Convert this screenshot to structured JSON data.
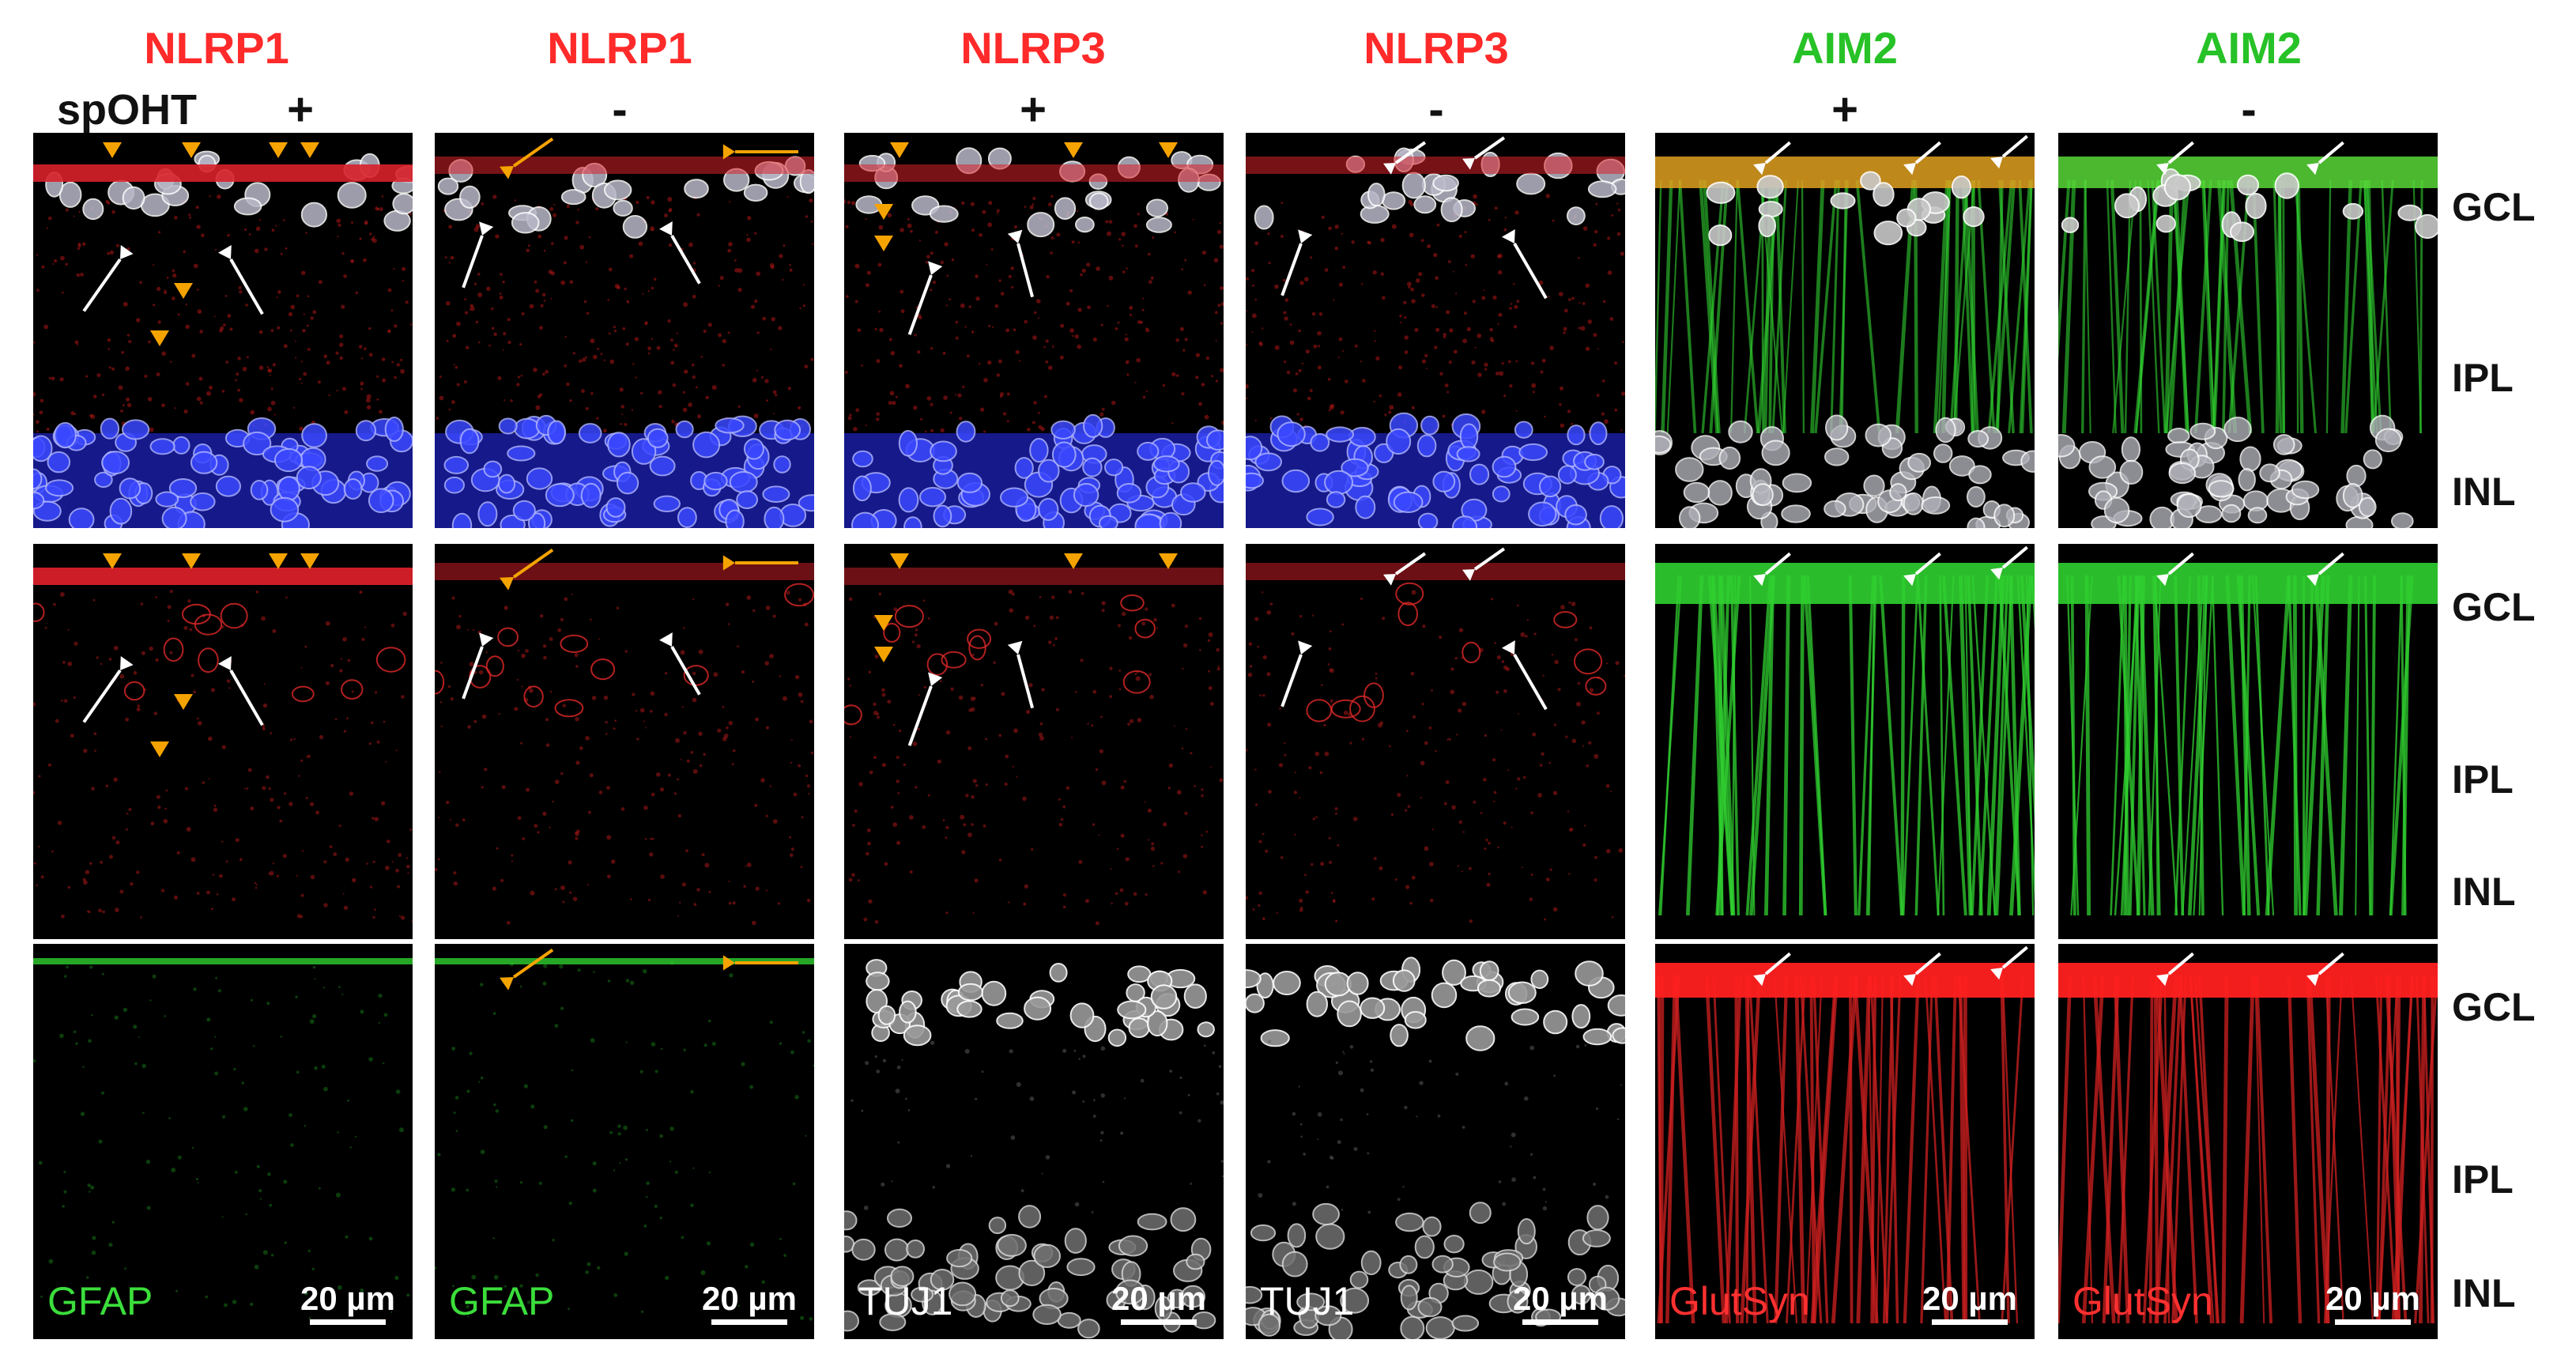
{
  "figure": {
    "row_label": "spOHT",
    "columns": [
      {
        "protein": "NLRP1",
        "color": "#ff2a2a",
        "condition": "+",
        "marker": "GFAP",
        "marker_color": "#3bde3b"
      },
      {
        "protein": "NLRP1",
        "color": "#ff2a2a",
        "condition": "-",
        "marker": "GFAP",
        "marker_color": "#3bde3b"
      },
      {
        "protein": "NLRP3",
        "color": "#ff2a2a",
        "condition": "+",
        "marker": "TUJ1",
        "marker_color": "#ffffff"
      },
      {
        "protein": "NLRP3",
        "color": "#ff2a2a",
        "condition": "-",
        "marker": "TUJ1",
        "marker_color": "#ffffff"
      },
      {
        "protein": "AIM2",
        "color": "#27c227",
        "condition": "+",
        "marker": "GlutSyn",
        "marker_color": "#ff3030"
      },
      {
        "protein": "AIM2",
        "color": "#27c227",
        "condition": "-",
        "marker": "GlutSyn",
        "marker_color": "#ff3030"
      }
    ],
    "scale_bar": "20 µm",
    "layers": [
      "GCL",
      "IPL",
      "INL"
    ],
    "colors": {
      "arrow_orange": "#f5a300",
      "arrow_white": "#ffffff",
      "dapi_blue": "#2c3cff"
    }
  }
}
